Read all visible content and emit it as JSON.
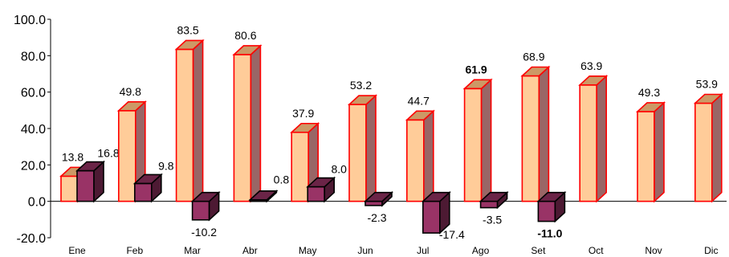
{
  "chart_data": {
    "type": "bar",
    "title": "",
    "xlabel": "",
    "ylabel": "",
    "categories": [
      "Ene",
      "Feb",
      "Mar",
      "Abr",
      "May",
      "Jun",
      "Jul",
      "Ago",
      "Set",
      "Oct",
      "Nov",
      "Dic"
    ],
    "ylim": [
      -20,
      100
    ],
    "yticks": [
      "100.0",
      "80.0",
      "60.0",
      "40.0",
      "20.0",
      "0.0",
      "-20.0"
    ],
    "grid": false,
    "legend": "none",
    "series": [
      {
        "values": [
          13.8,
          49.8,
          83.5,
          80.6,
          37.9,
          53.2,
          44.7,
          61.9,
          68.9,
          63.9,
          49.3,
          53.9
        ],
        "labels": [
          "13.8",
          "49.8",
          "83.5",
          "80.6",
          "37.9",
          "53.2",
          "44.7",
          "61.9",
          "68.9",
          "63.9",
          "49.3",
          "53.9"
        ],
        "bold": [
          false,
          false,
          false,
          false,
          false,
          false,
          false,
          true,
          false,
          false,
          false,
          false
        ],
        "face_color": "#FFCC99",
        "side_color": "#996666",
        "top_color": "#CC9966",
        "edge_color": "#FF0000"
      },
      {
        "values": [
          16.8,
          9.8,
          -10.2,
          0.8,
          8.0,
          -2.3,
          -17.4,
          -3.5,
          -11.0,
          null,
          null,
          null
        ],
        "labels": [
          "16.8",
          "9.8",
          "-10.2",
          "0.8",
          "8.0",
          "-2.3",
          "-17.4",
          "-3.5",
          "-11.0",
          "",
          "",
          ""
        ],
        "bold": [
          false,
          false,
          false,
          false,
          false,
          false,
          false,
          false,
          true,
          false,
          false,
          false
        ],
        "face_color": "#993366",
        "side_color": "#4D1A33",
        "top_color": "#6B2447",
        "edge_color": "#000000"
      }
    ]
  }
}
